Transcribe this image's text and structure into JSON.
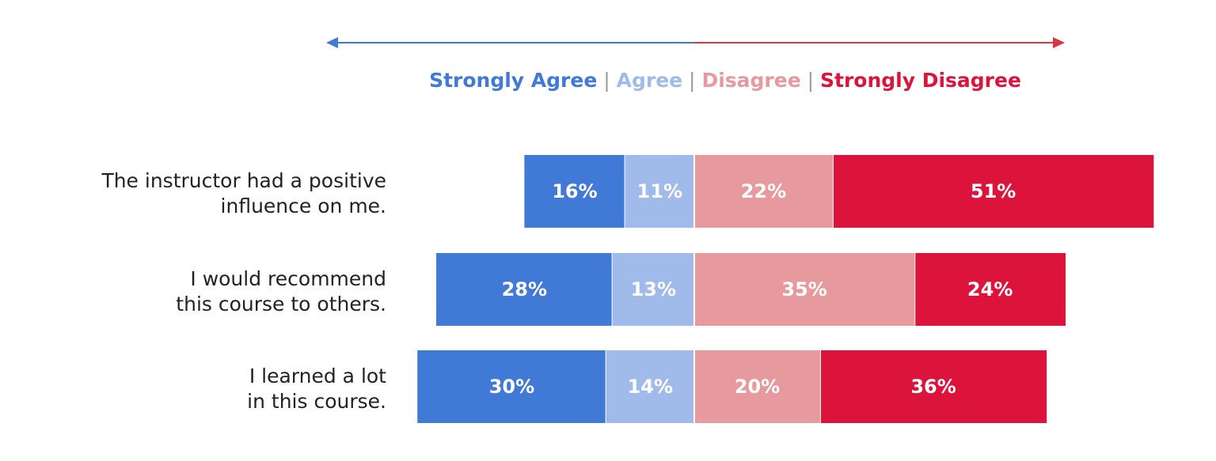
{
  "chart_data": {
    "type": "bar",
    "orientation": "horizontal",
    "stacking": "diverging",
    "title": "",
    "xlabel": "",
    "ylabel": "",
    "categories": [
      [
        "The instructor had a positive",
        "influence on me."
      ],
      [
        "I would recommend",
        "this course to others."
      ],
      [
        "I learned a lot",
        "in this course."
      ]
    ],
    "series": [
      {
        "name": "Strongly Agree",
        "side": "agree",
        "color": "#4179d7",
        "values": [
          16,
          28,
          30
        ]
      },
      {
        "name": "Agree",
        "side": "agree",
        "color": "#a0bbea",
        "values": [
          11,
          13,
          14
        ]
      },
      {
        "name": "Disagree",
        "side": "disagree",
        "color": "#e69a9e",
        "values": [
          22,
          35,
          20
        ]
      },
      {
        "name": "Strongly Disagree",
        "side": "disagree",
        "color": "#dc143c",
        "values": [
          51,
          24,
          36
        ]
      }
    ],
    "value_suffix": "%",
    "legend_position": "top-center",
    "legend_separator": "|",
    "direction_arrows": {
      "left_color": "#4179d7",
      "right_color": "#dc3545"
    },
    "grid": false
  }
}
